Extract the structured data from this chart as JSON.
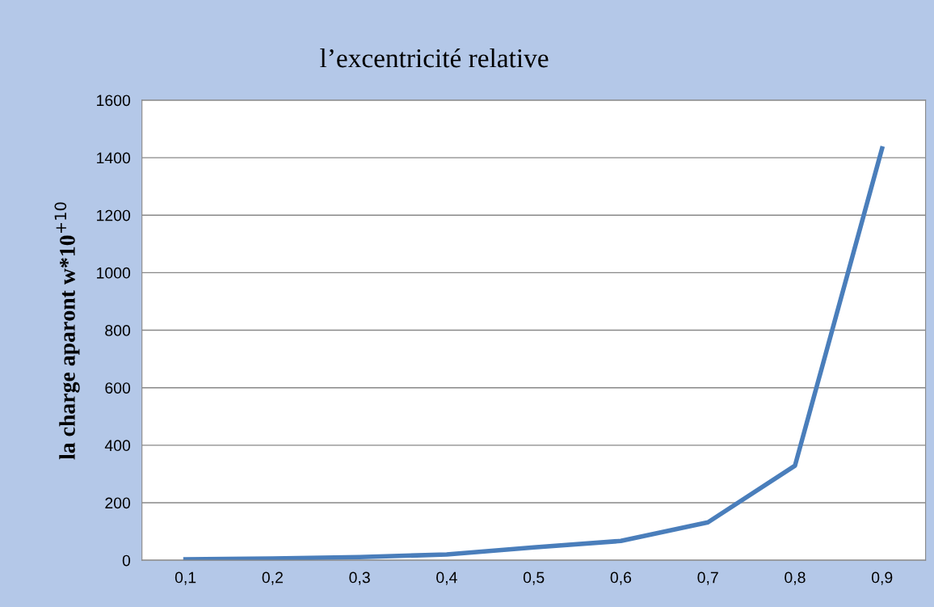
{
  "chart_data": {
    "type": "line",
    "title": "l’excentricité relative",
    "ylabel": "la charge aparont w*10$^{+10}$",
    "categories": [
      "0,1",
      "0,2",
      "0,3",
      "0,4",
      "0,5",
      "0,6",
      "0,7",
      "0,8",
      "0,9"
    ],
    "series": [
      {
        "color": "#4a7ebb",
        "values": [
          3,
          6,
          11,
          20,
          45,
          67,
          132,
          329,
          1432
        ]
      }
    ],
    "ylim": [
      0,
      1600
    ],
    "yticks": [
      0,
      200,
      400,
      600,
      800,
      1000,
      1200,
      1400,
      1600
    ],
    "grid": "y",
    "legend": false,
    "marker": "none",
    "line_style": "solid"
  }
}
